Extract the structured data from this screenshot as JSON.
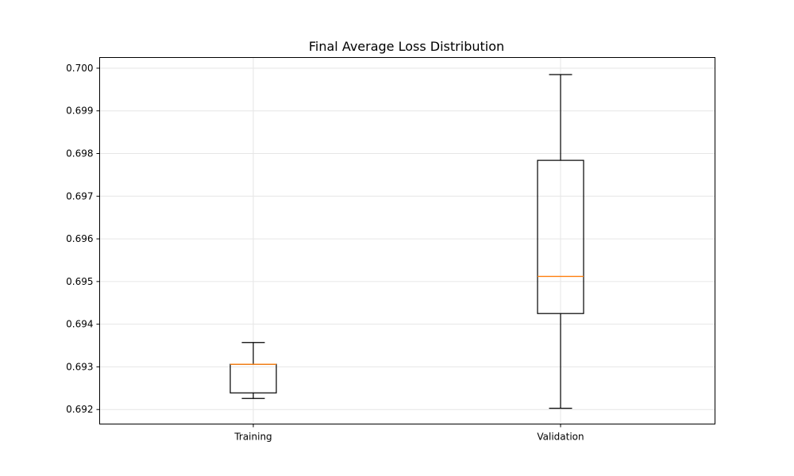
{
  "chart_data": {
    "type": "box",
    "title": "Final Average Loss Distribution",
    "xlabel": "",
    "ylabel": "",
    "categories": [
      "Training",
      "Validation"
    ],
    "boxes": [
      {
        "name": "Training",
        "whisker_low": 0.69226,
        "q1": 0.69239,
        "median": 0.69306,
        "q3": 0.69306,
        "whisker_high": 0.69357
      },
      {
        "name": "Validation",
        "whisker_low": 0.69203,
        "q1": 0.69425,
        "median": 0.69512,
        "q3": 0.69784,
        "whisker_high": 0.69985
      }
    ],
    "ylim": [
      0.69166,
      0.70025
    ],
    "yticks": [
      0.692,
      0.693,
      0.694,
      0.695,
      0.696,
      0.697,
      0.698,
      0.699,
      0.7
    ],
    "ytick_labels": [
      "0.692",
      "0.693",
      "0.694",
      "0.695",
      "0.696",
      "0.697",
      "0.698",
      "0.699",
      "0.700"
    ],
    "grid": true,
    "colors": {
      "box": "#000000",
      "median": "#ff7f0e",
      "grid": "#e6e6e6"
    }
  }
}
